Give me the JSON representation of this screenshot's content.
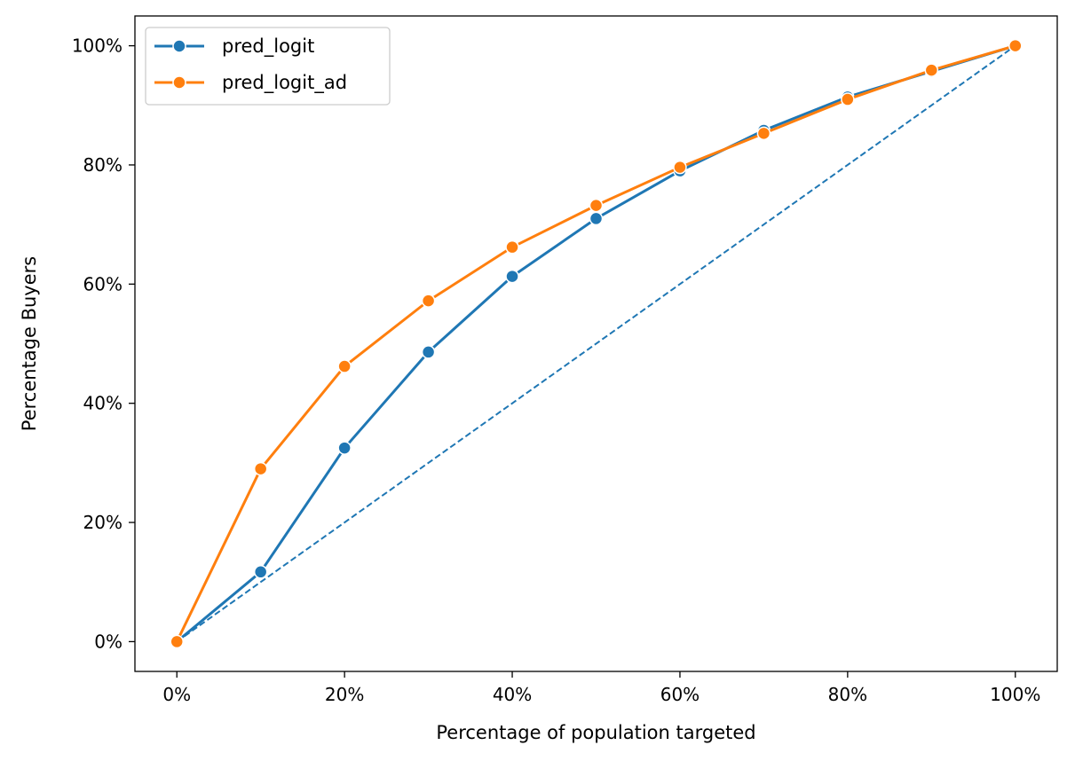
{
  "chart_data": {
    "type": "line",
    "title": "",
    "xlabel": "Percentage of population targeted",
    "ylabel": "Percentage Buyers",
    "xlim": [
      -0.05,
      1.05
    ],
    "ylim": [
      -0.05,
      1.05
    ],
    "x_ticks": [
      0,
      0.2,
      0.4,
      0.6,
      0.8,
      1.0
    ],
    "x_tick_labels": [
      "0%",
      "20%",
      "40%",
      "60%",
      "80%",
      "100%"
    ],
    "y_ticks": [
      0,
      0.2,
      0.4,
      0.6,
      0.8,
      1.0
    ],
    "y_tick_labels": [
      "0%",
      "20%",
      "40%",
      "60%",
      "80%",
      "100%"
    ],
    "grid": false,
    "legend_position": "top-left",
    "x": [
      0,
      0.1,
      0.2,
      0.3,
      0.4,
      0.5,
      0.6,
      0.7,
      0.8,
      0.9,
      1.0
    ],
    "series": [
      {
        "name": "pred_logit",
        "color": "#1f77b4",
        "marker": "circle",
        "values": [
          0,
          0.117,
          0.325,
          0.486,
          0.613,
          0.71,
          0.79,
          0.858,
          0.914,
          0.957,
          1.0
        ]
      },
      {
        "name": "pred_logit_ad",
        "color": "#ff7f0e",
        "marker": "circle",
        "values": [
          0,
          0.29,
          0.462,
          0.572,
          0.662,
          0.732,
          0.796,
          0.853,
          0.91,
          0.959,
          1.0
        ]
      }
    ],
    "reference_line": {
      "style": "dashed",
      "color": "#1f77b4",
      "x": [
        0,
        1.0
      ],
      "values": [
        0,
        1.0
      ]
    }
  }
}
